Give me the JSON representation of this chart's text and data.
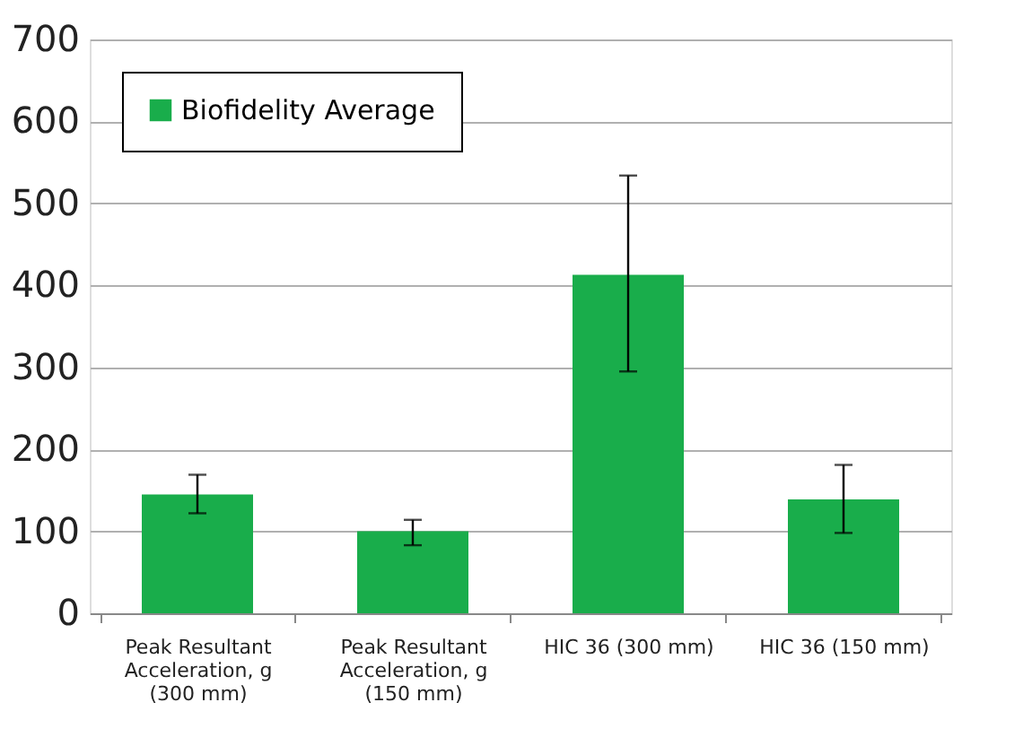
{
  "chart_data": {
    "type": "bar",
    "categories": [
      "Peak Resultant Acceleration, g (300 mm)",
      "Peak Resultant Acceleration, g (150 mm)",
      "HIC 36 (300 mm)",
      "HIC 36 (150 mm)"
    ],
    "series": [
      {
        "name": "Biofidelity Average",
        "color": "#19ad4b",
        "values": [
          145,
          100,
          413,
          139
        ],
        "errors": [
          [
            122,
            169
          ],
          [
            83,
            114
          ],
          [
            295,
            534
          ],
          [
            98,
            181
          ]
        ]
      }
    ],
    "ylim": [
      0,
      700
    ],
    "yticks": [
      0,
      100,
      200,
      300,
      400,
      500,
      600,
      700
    ],
    "grid": "y",
    "legend": "top left"
  }
}
